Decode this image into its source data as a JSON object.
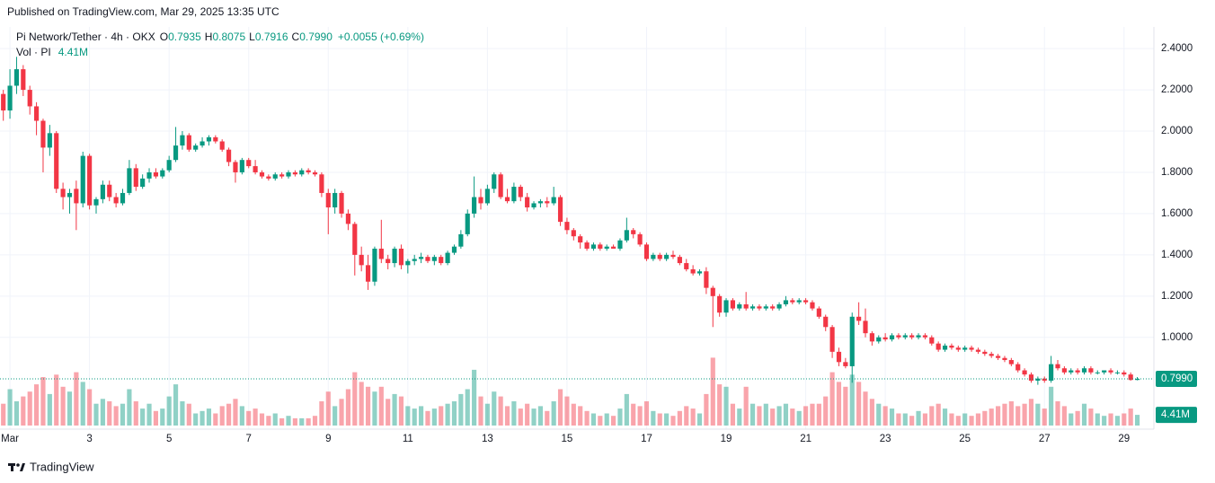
{
  "chart_data": {
    "type": "candlestick",
    "published": "Published on TradingView.com, Mar 29, 2025 13:35 UTC",
    "symbol": "Pi Network/Tether · 4h · OKX",
    "ohlc_letters": [
      "O",
      "H",
      "L",
      "C"
    ],
    "last_labels": {
      "open": "0.7935",
      "high": "0.8075",
      "low": "0.7916",
      "close": "0.7990",
      "change": "+0.0055 (+0.69%)"
    },
    "volume_title": "Vol · PI",
    "volume_label": "4.41M",
    "brand": "TradingView",
    "up_color": "#089981",
    "down_color": "#f23645",
    "grid": true,
    "ylim": [
      0.555,
      2.505
    ],
    "yticks": [
      {
        "value": 1.0,
        "label": "1.0000"
      },
      {
        "value": 1.2,
        "label": "1.2000"
      },
      {
        "value": 1.4,
        "label": "1.4000"
      },
      {
        "value": 1.6,
        "label": "1.6000"
      },
      {
        "value": 1.8,
        "label": "1.8000"
      },
      {
        "value": 2.0,
        "label": "2.0000"
      },
      {
        "value": 2.2,
        "label": "2.2000"
      },
      {
        "value": 2.4,
        "label": "2.4000"
      }
    ],
    "vlim": [
      0,
      40
    ],
    "xlim": [
      -0.5,
      173.5
    ],
    "xticks": [
      {
        "value": 1,
        "label": "Mar"
      },
      {
        "value": 13,
        "label": "3"
      },
      {
        "value": 25,
        "label": "5"
      },
      {
        "value": 37,
        "label": "7"
      },
      {
        "value": 49,
        "label": "9"
      },
      {
        "value": 61,
        "label": "11"
      },
      {
        "value": 73,
        "label": "13"
      },
      {
        "value": 85,
        "label": "15"
      },
      {
        "value": 97,
        "label": "17"
      },
      {
        "value": 109,
        "label": "19"
      },
      {
        "value": 121,
        "label": "21"
      },
      {
        "value": 133,
        "label": "23"
      },
      {
        "value": 145,
        "label": "25"
      },
      {
        "value": 157,
        "label": "27"
      },
      {
        "value": 169,
        "label": "29"
      }
    ],
    "candles": [
      [
        2.18,
        2.2,
        2.05,
        2.1,
        9
      ],
      [
        2.1,
        2.3,
        2.06,
        2.22,
        15
      ],
      [
        2.22,
        2.36,
        2.18,
        2.3,
        10
      ],
      [
        2.3,
        2.32,
        2.17,
        2.2,
        12
      ],
      [
        2.2,
        2.22,
        2.08,
        2.12,
        14
      ],
      [
        2.12,
        2.14,
        1.98,
        2.05,
        17
      ],
      [
        2.05,
        2.06,
        1.8,
        1.92,
        20
      ],
      [
        1.92,
        2.03,
        1.88,
        1.99,
        13
      ],
      [
        1.99,
        2.0,
        1.7,
        1.72,
        21
      ],
      [
        1.72,
        1.75,
        1.62,
        1.68,
        16
      ],
      [
        1.68,
        1.72,
        1.6,
        1.7,
        14
      ],
      [
        1.72,
        1.76,
        1.52,
        1.65,
        22
      ],
      [
        1.65,
        1.9,
        1.63,
        1.88,
        18
      ],
      [
        1.88,
        1.89,
        1.62,
        1.64,
        15
      ],
      [
        1.64,
        1.68,
        1.6,
        1.67,
        9
      ],
      [
        1.67,
        1.76,
        1.65,
        1.74,
        11
      ],
      [
        1.74,
        1.76,
        1.66,
        1.68,
        10
      ],
      [
        1.68,
        1.7,
        1.63,
        1.65,
        8
      ],
      [
        1.65,
        1.72,
        1.64,
        1.7,
        9
      ],
      [
        1.7,
        1.86,
        1.69,
        1.82,
        15
      ],
      [
        1.82,
        1.84,
        1.71,
        1.73,
        10
      ],
      [
        1.73,
        1.79,
        1.72,
        1.77,
        7
      ],
      [
        1.77,
        1.82,
        1.75,
        1.8,
        9
      ],
      [
        1.8,
        1.82,
        1.77,
        1.78,
        6
      ],
      [
        1.78,
        1.82,
        1.77,
        1.81,
        7
      ],
      [
        1.81,
        1.88,
        1.8,
        1.86,
        12
      ],
      [
        1.86,
        2.02,
        1.85,
        1.93,
        17
      ],
      [
        1.93,
        2.0,
        1.91,
        1.98,
        10
      ],
      [
        1.98,
        1.99,
        1.9,
        1.91,
        9
      ],
      [
        1.91,
        1.94,
        1.9,
        1.93,
        5
      ],
      [
        1.93,
        1.97,
        1.92,
        1.95,
        6
      ],
      [
        1.95,
        1.98,
        1.93,
        1.97,
        7
      ],
      [
        1.97,
        1.98,
        1.94,
        1.95,
        5
      ],
      [
        1.95,
        1.96,
        1.9,
        1.91,
        8
      ],
      [
        1.91,
        1.92,
        1.83,
        1.85,
        9
      ],
      [
        1.85,
        1.86,
        1.75,
        1.8,
        11
      ],
      [
        1.8,
        1.87,
        1.79,
        1.86,
        8
      ],
      [
        1.86,
        1.87,
        1.82,
        1.83,
        6
      ],
      [
        1.83,
        1.86,
        1.79,
        1.8,
        7
      ],
      [
        1.8,
        1.81,
        1.77,
        1.78,
        5
      ],
      [
        1.78,
        1.79,
        1.76,
        1.77,
        4
      ],
      [
        1.77,
        1.8,
        1.76,
        1.79,
        5
      ],
      [
        1.79,
        1.8,
        1.77,
        1.78,
        3
      ],
      [
        1.78,
        1.81,
        1.77,
        1.8,
        4
      ],
      [
        1.8,
        1.81,
        1.78,
        1.79,
        3
      ],
      [
        1.79,
        1.82,
        1.78,
        1.81,
        3
      ],
      [
        1.81,
        1.82,
        1.79,
        1.8,
        3
      ],
      [
        1.8,
        1.81,
        1.78,
        1.79,
        4
      ],
      [
        1.79,
        1.8,
        1.68,
        1.7,
        10
      ],
      [
        1.7,
        1.72,
        1.5,
        1.63,
        14
      ],
      [
        1.63,
        1.72,
        1.6,
        1.7,
        8
      ],
      [
        1.7,
        1.71,
        1.58,
        1.6,
        11
      ],
      [
        1.6,
        1.62,
        1.52,
        1.55,
        15
      ],
      [
        1.55,
        1.56,
        1.3,
        1.4,
        22
      ],
      [
        1.4,
        1.44,
        1.32,
        1.35,
        18
      ],
      [
        1.35,
        1.4,
        1.23,
        1.27,
        16
      ],
      [
        1.27,
        1.44,
        1.25,
        1.43,
        14
      ],
      [
        1.43,
        1.57,
        1.36,
        1.38,
        16
      ],
      [
        1.38,
        1.4,
        1.33,
        1.36,
        11
      ],
      [
        1.36,
        1.44,
        1.34,
        1.43,
        13
      ],
      [
        1.43,
        1.45,
        1.33,
        1.35,
        12
      ],
      [
        1.35,
        1.38,
        1.31,
        1.37,
        8
      ],
      [
        1.37,
        1.4,
        1.35,
        1.38,
        7
      ],
      [
        1.38,
        1.41,
        1.36,
        1.39,
        8
      ],
      [
        1.39,
        1.4,
        1.36,
        1.37,
        6
      ],
      [
        1.37,
        1.4,
        1.35,
        1.39,
        7
      ],
      [
        1.39,
        1.4,
        1.35,
        1.36,
        8
      ],
      [
        1.36,
        1.42,
        1.35,
        1.41,
        9
      ],
      [
        1.41,
        1.45,
        1.4,
        1.44,
        10
      ],
      [
        1.44,
        1.52,
        1.43,
        1.5,
        13
      ],
      [
        1.5,
        1.62,
        1.49,
        1.6,
        15
      ],
      [
        1.6,
        1.78,
        1.58,
        1.68,
        23
      ],
      [
        1.68,
        1.72,
        1.62,
        1.65,
        12
      ],
      [
        1.65,
        1.74,
        1.64,
        1.72,
        9
      ],
      [
        1.72,
        1.8,
        1.7,
        1.79,
        14
      ],
      [
        1.79,
        1.8,
        1.67,
        1.68,
        12
      ],
      [
        1.68,
        1.72,
        1.65,
        1.66,
        8
      ],
      [
        1.66,
        1.75,
        1.65,
        1.73,
        10
      ],
      [
        1.73,
        1.74,
        1.66,
        1.68,
        7
      ],
      [
        1.68,
        1.7,
        1.61,
        1.63,
        9
      ],
      [
        1.63,
        1.66,
        1.62,
        1.65,
        7
      ],
      [
        1.65,
        1.67,
        1.63,
        1.66,
        8
      ],
      [
        1.66,
        1.68,
        1.63,
        1.65,
        6
      ],
      [
        1.65,
        1.73,
        1.64,
        1.68,
        10
      ],
      [
        1.68,
        1.69,
        1.54,
        1.56,
        15
      ],
      [
        1.56,
        1.58,
        1.5,
        1.52,
        12
      ],
      [
        1.52,
        1.53,
        1.47,
        1.49,
        9
      ],
      [
        1.49,
        1.5,
        1.43,
        1.46,
        8
      ],
      [
        1.46,
        1.47,
        1.42,
        1.43,
        6
      ],
      [
        1.43,
        1.46,
        1.42,
        1.45,
        5
      ],
      [
        1.45,
        1.46,
        1.42,
        1.43,
        4
      ],
      [
        1.43,
        1.45,
        1.42,
        1.44,
        5
      ],
      [
        1.44,
        1.45,
        1.43,
        1.43,
        4
      ],
      [
        1.43,
        1.48,
        1.42,
        1.47,
        7
      ],
      [
        1.47,
        1.58,
        1.46,
        1.52,
        13
      ],
      [
        1.52,
        1.53,
        1.48,
        1.5,
        9
      ],
      [
        1.5,
        1.51,
        1.44,
        1.45,
        8
      ],
      [
        1.45,
        1.46,
        1.37,
        1.38,
        10
      ],
      [
        1.38,
        1.41,
        1.37,
        1.4,
        6
      ],
      [
        1.4,
        1.41,
        1.37,
        1.38,
        5
      ],
      [
        1.38,
        1.41,
        1.37,
        1.4,
        5
      ],
      [
        1.4,
        1.42,
        1.38,
        1.39,
        4
      ],
      [
        1.39,
        1.4,
        1.35,
        1.36,
        6
      ],
      [
        1.36,
        1.38,
        1.32,
        1.33,
        8
      ],
      [
        1.33,
        1.35,
        1.3,
        1.31,
        7
      ],
      [
        1.31,
        1.33,
        1.3,
        1.32,
        5
      ],
      [
        1.32,
        1.34,
        1.21,
        1.24,
        13
      ],
      [
        1.24,
        1.25,
        1.05,
        1.2,
        28
      ],
      [
        1.2,
        1.21,
        1.1,
        1.12,
        17
      ],
      [
        1.12,
        1.19,
        1.1,
        1.18,
        16
      ],
      [
        1.18,
        1.19,
        1.13,
        1.14,
        9
      ],
      [
        1.14,
        1.17,
        1.13,
        1.16,
        7
      ],
      [
        1.16,
        1.22,
        1.13,
        1.14,
        16
      ],
      [
        1.14,
        1.16,
        1.13,
        1.15,
        9
      ],
      [
        1.15,
        1.16,
        1.13,
        1.14,
        8
      ],
      [
        1.14,
        1.16,
        1.13,
        1.15,
        9
      ],
      [
        1.15,
        1.16,
        1.13,
        1.14,
        7
      ],
      [
        1.14,
        1.17,
        1.13,
        1.16,
        8
      ],
      [
        1.16,
        1.2,
        1.15,
        1.18,
        9
      ],
      [
        1.18,
        1.19,
        1.16,
        1.17,
        7
      ],
      [
        1.17,
        1.19,
        1.16,
        1.18,
        6
      ],
      [
        1.18,
        1.19,
        1.16,
        1.17,
        8
      ],
      [
        1.17,
        1.18,
        1.13,
        1.14,
        9
      ],
      [
        1.14,
        1.15,
        1.09,
        1.1,
        9
      ],
      [
        1.1,
        1.11,
        1.03,
        1.05,
        12
      ],
      [
        1.05,
        1.06,
        0.9,
        0.93,
        22
      ],
      [
        0.93,
        0.95,
        0.86,
        0.88,
        18
      ],
      [
        0.88,
        0.9,
        0.85,
        0.86,
        16
      ],
      [
        0.86,
        1.12,
        0.78,
        1.1,
        21
      ],
      [
        1.1,
        1.17,
        1.06,
        1.08,
        18
      ],
      [
        1.08,
        1.14,
        1.0,
        1.02,
        14
      ],
      [
        1.02,
        1.03,
        0.96,
        0.98,
        11
      ],
      [
        0.98,
        1.01,
        0.97,
        1.0,
        9
      ],
      [
        1.0,
        1.02,
        0.98,
        0.99,
        8
      ],
      [
        0.99,
        1.02,
        0.98,
        1.01,
        7
      ],
      [
        1.01,
        1.02,
        0.99,
        1.0,
        5
      ],
      [
        1.0,
        1.02,
        0.99,
        1.01,
        5
      ],
      [
        1.01,
        1.02,
        0.99,
        1.0,
        4
      ],
      [
        1.0,
        1.02,
        0.99,
        1.01,
        6
      ],
      [
        1.01,
        1.02,
        0.99,
        1.0,
        5
      ],
      [
        1.0,
        1.01,
        0.96,
        0.97,
        8
      ],
      [
        0.97,
        0.98,
        0.93,
        0.94,
        9
      ],
      [
        0.94,
        0.97,
        0.93,
        0.96,
        7
      ],
      [
        0.96,
        0.97,
        0.94,
        0.95,
        5
      ],
      [
        0.95,
        0.96,
        0.93,
        0.94,
        4
      ],
      [
        0.94,
        0.96,
        0.93,
        0.95,
        5
      ],
      [
        0.95,
        0.96,
        0.93,
        0.94,
        4
      ],
      [
        0.94,
        0.95,
        0.92,
        0.93,
        5
      ],
      [
        0.93,
        0.94,
        0.91,
        0.92,
        6
      ],
      [
        0.92,
        0.93,
        0.9,
        0.91,
        7
      ],
      [
        0.91,
        0.92,
        0.89,
        0.9,
        8
      ],
      [
        0.9,
        0.91,
        0.88,
        0.89,
        9
      ],
      [
        0.89,
        0.9,
        0.86,
        0.87,
        10
      ],
      [
        0.87,
        0.88,
        0.83,
        0.84,
        8
      ],
      [
        0.84,
        0.85,
        0.81,
        0.82,
        9
      ],
      [
        0.82,
        0.83,
        0.78,
        0.79,
        11
      ],
      [
        0.79,
        0.81,
        0.77,
        0.8,
        9
      ],
      [
        0.8,
        0.81,
        0.78,
        0.79,
        7
      ],
      [
        0.79,
        0.91,
        0.78,
        0.87,
        16
      ],
      [
        0.87,
        0.89,
        0.84,
        0.85,
        10
      ],
      [
        0.85,
        0.86,
        0.82,
        0.83,
        8
      ],
      [
        0.83,
        0.85,
        0.82,
        0.84,
        5
      ],
      [
        0.84,
        0.85,
        0.82,
        0.83,
        6
      ],
      [
        0.83,
        0.86,
        0.82,
        0.85,
        9
      ],
      [
        0.85,
        0.86,
        0.82,
        0.83,
        7
      ],
      [
        0.83,
        0.84,
        0.82,
        0.83,
        5
      ],
      [
        0.83,
        0.84,
        0.82,
        0.84,
        4
      ],
      [
        0.84,
        0.85,
        0.82,
        0.83,
        5
      ],
      [
        0.83,
        0.84,
        0.82,
        0.83,
        4
      ],
      [
        0.83,
        0.84,
        0.81,
        0.82,
        5
      ],
      [
        0.82,
        0.83,
        0.79,
        0.7935,
        7
      ],
      [
        0.7935,
        0.8075,
        0.7916,
        0.799,
        4.41
      ]
    ]
  }
}
